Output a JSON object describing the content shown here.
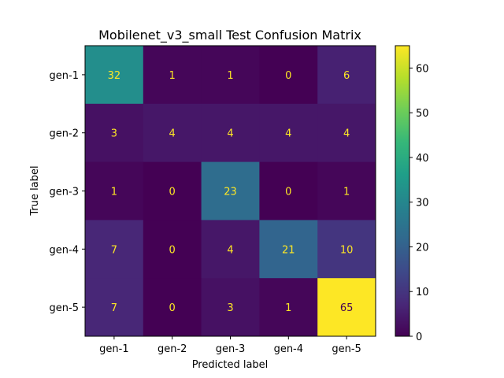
{
  "chart_data": {
    "type": "heatmap",
    "title": "Mobilenet_v3_small Test Confusion Matrix",
    "xlabel": "Predicted label",
    "ylabel": "True label",
    "x_categories": [
      "gen-1",
      "gen-2",
      "gen-3",
      "gen-4",
      "gen-5"
    ],
    "y_categories": [
      "gen-1",
      "gen-2",
      "gen-3",
      "gen-4",
      "gen-5"
    ],
    "values": [
      [
        32,
        1,
        1,
        0,
        6
      ],
      [
        3,
        4,
        4,
        4,
        4
      ],
      [
        1,
        0,
        23,
        0,
        1
      ],
      [
        7,
        0,
        4,
        21,
        10
      ],
      [
        7,
        0,
        3,
        1,
        65
      ]
    ],
    "colormap": "viridis",
    "color_range": [
      0,
      65
    ],
    "colorbar_ticks": [
      0,
      10,
      20,
      30,
      40,
      50,
      60
    ],
    "annotation_color_dark_cells": "#fde725",
    "annotation_color_light_cells": "#440154"
  }
}
